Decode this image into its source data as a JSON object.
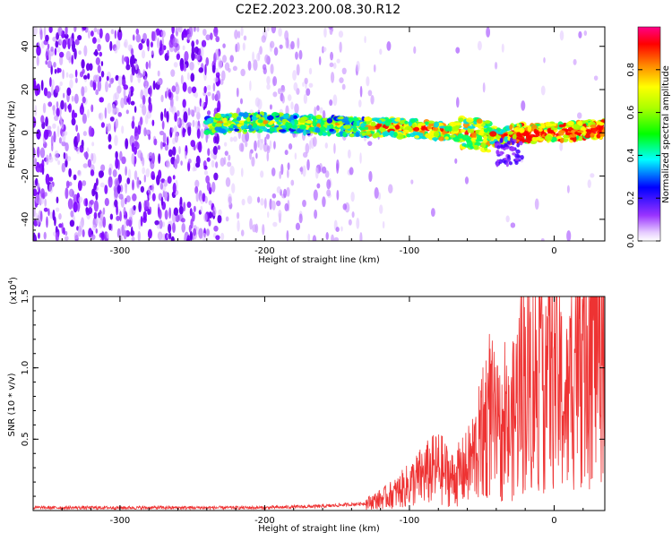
{
  "title": "C2E2.2023.200.08.30.R12",
  "chart_data": [
    {
      "type": "heatmap",
      "xlabel": "Height of straight line (km)",
      "ylabel": "Frequency (Hz)",
      "xlim": [
        -360,
        35
      ],
      "ylim": [
        -50,
        49
      ],
      "x_ticks": [
        -300,
        -200,
        -100,
        0
      ],
      "y_ticks": [
        -40,
        -20,
        0,
        20,
        40
      ],
      "colorbar": {
        "label": "Normalized spectral amplitude",
        "range": [
          0,
          1
        ],
        "ticks": [
          0.0,
          0.2,
          0.4,
          0.6,
          0.8
        ]
      },
      "signal_band": {
        "x": [
          -240,
          -200,
          -150,
          -100,
          -60,
          -40,
          -25,
          0,
          35
        ],
        "center_freq": [
          4,
          5,
          3,
          2,
          0,
          -2,
          0,
          0,
          2
        ]
      },
      "grid": false
    },
    {
      "type": "line",
      "xlabel": "Height of straight line (km)",
      "ylabel": "SNR (10 * v/v)",
      "y_exponent": "(x10",
      "y_exponent_power": "4",
      "y_exponent_close": ")",
      "xlim": [
        -360,
        35
      ],
      "ylim": [
        0,
        1.5
      ],
      "x_ticks": [
        -300,
        -200,
        -100,
        0
      ],
      "y_ticks": [
        0.5,
        1.0,
        1.5
      ],
      "y_tick_labels": [
        "0.5",
        "1.0",
        "1.5"
      ],
      "series": [
        {
          "color": "#ee3333",
          "x": [
            -360,
            -320,
            -280,
            -240,
            -200,
            -160,
            -130,
            -120,
            -110,
            -100,
            -90,
            -80,
            -70,
            -60,
            -50,
            -45,
            -40,
            -35,
            -30,
            -25,
            -20,
            -15,
            -10,
            -5,
            0,
            5,
            10,
            15,
            20,
            25,
            30,
            35
          ],
          "y": [
            0.02,
            0.02,
            0.02,
            0.02,
            0.02,
            0.03,
            0.05,
            0.08,
            0.12,
            0.18,
            0.25,
            0.3,
            0.22,
            0.3,
            0.5,
            0.7,
            0.55,
            0.5,
            0.55,
            0.8,
            0.95,
            0.9,
            1.0,
            1.05,
            1.05,
            0.8,
            0.7,
            1.3,
            1.35,
            1.4,
            1.45,
            1.5
          ]
        }
      ],
      "grid": false
    }
  ]
}
